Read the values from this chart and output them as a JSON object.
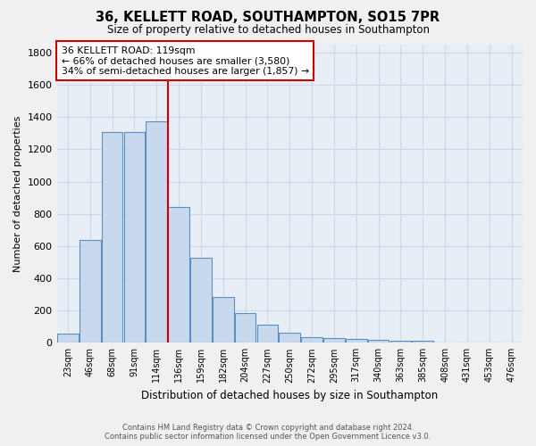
{
  "title1": "36, KELLETT ROAD, SOUTHAMPTON, SO15 7PR",
  "title2": "Size of property relative to detached houses in Southampton",
  "xlabel": "Distribution of detached houses by size in Southampton",
  "ylabel": "Number of detached properties",
  "annotation_title": "36 KELLETT ROAD: 119sqm",
  "annotation_line1": "← 66% of detached houses are smaller (3,580)",
  "annotation_line2": "34% of semi-detached houses are larger (1,857) →",
  "bar_color": "#c9d9ed",
  "bar_edge_color": "#5a8fc0",
  "bg_color": "#e8eef5",
  "grid_color": "#d0d8e8",
  "vline_color": "#cc0000",
  "categories": [
    "23sqm",
    "46sqm",
    "68sqm",
    "91sqm",
    "114sqm",
    "136sqm",
    "159sqm",
    "182sqm",
    "204sqm",
    "227sqm",
    "250sqm",
    "272sqm",
    "295sqm",
    "317sqm",
    "340sqm",
    "363sqm",
    "385sqm",
    "408sqm",
    "431sqm",
    "453sqm",
    "476sqm"
  ],
  "values": [
    55,
    640,
    1305,
    1310,
    1375,
    845,
    530,
    285,
    185,
    110,
    65,
    35,
    30,
    22,
    18,
    10,
    12,
    0,
    0,
    0,
    0
  ],
  "ylim": [
    0,
    1850
  ],
  "yticks": [
    0,
    200,
    400,
    600,
    800,
    1000,
    1200,
    1400,
    1600,
    1800
  ],
  "footer1": "Contains HM Land Registry data © Crown copyright and database right 2024.",
  "footer2": "Contains public sector information licensed under the Open Government Licence v3.0.",
  "annotation_box_edge": "#cc0000",
  "fig_bg": "#f0f0f0"
}
